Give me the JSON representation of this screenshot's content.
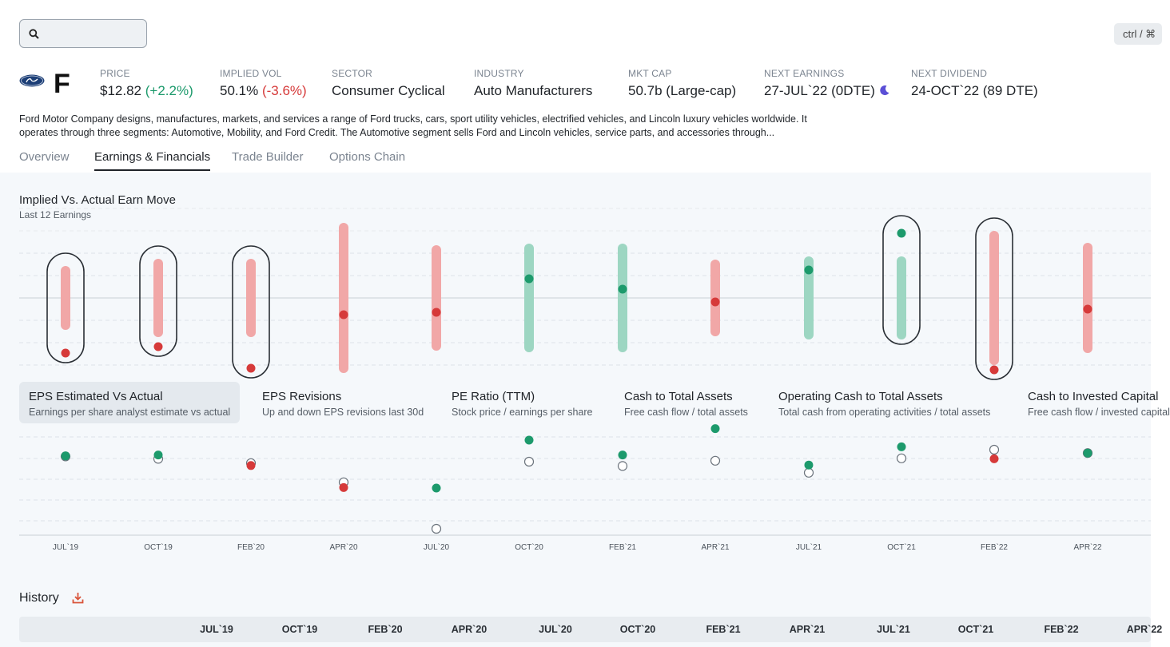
{
  "search": {
    "placeholder": "",
    "shortcut": "ctrl / ⌘"
  },
  "ticker": {
    "symbol": "F",
    "logo": "ford-oval-logo"
  },
  "stats": [
    {
      "label": "PRICE",
      "value": "$12.82",
      "change": "(+2.2%)",
      "change_color": "#1d9a6c"
    },
    {
      "label": "IMPLIED VOL",
      "value": "50.1%",
      "change": "(-3.6%)",
      "change_color": "#d63a3a"
    },
    {
      "label": "SECTOR",
      "value": "Consumer Cyclical"
    },
    {
      "label": "INDUSTRY",
      "value": "Auto Manufacturers"
    },
    {
      "label": "MKT CAP",
      "value": "50.7b (Large-cap)"
    },
    {
      "label": "NEXT EARNINGS",
      "value": "27-JUL`22 (0DTE)",
      "icon": "moon-icon"
    },
    {
      "label": "NEXT DIVIDEND",
      "value": "24-OCT`22 (89 DTE)"
    }
  ],
  "description": "Ford Motor Company designs, manufactures, markets, and services a range of Ford trucks, cars, sport utility vehicles, electrified vehicles, and Lincoln luxury vehicles worldwide. It operates through three segments: Automotive, Mobility, and Ford Credit. The Automotive segment sells Ford and Lincoln vehicles, service parts, and accessories through...",
  "tabs": [
    "Overview",
    "Earnings & Financials",
    "Trade Builder",
    "Options Chain"
  ],
  "active_tab": "Earnings & Financials",
  "earn_move": {
    "title": "Implied Vs. Actual Earn Move",
    "subtitle": "Last 12 Earnings"
  },
  "metrics": [
    {
      "title": "EPS Estimated Vs Actual",
      "subtitle": "Earnings per share analyst estimate vs actual",
      "selected": true
    },
    {
      "title": "EPS Revisions",
      "subtitle": "Up and down EPS revisions last 30d"
    },
    {
      "title": "PE Ratio (TTM)",
      "subtitle": "Stock price / earnings per share"
    },
    {
      "title": "Cash to Total Assets",
      "subtitle": "Free cash flow / total assets"
    },
    {
      "title": "Operating Cash to Total Assets",
      "subtitle": "Total cash from operating activities / total assets"
    },
    {
      "title": "Cash to Invested Capital",
      "subtitle": "Free cash flow / invested capital"
    }
  ],
  "colors": {
    "up": "#1d9a6c",
    "down": "#d63a3a",
    "up_bar": "#9dd6c2",
    "down_bar": "#f1a7a7"
  },
  "chart_data": [
    {
      "type": "scatter",
      "name": "Implied Vs. Actual Earn Move",
      "categories": [
        "JUL`19",
        "OCT`19",
        "FEB`20",
        "APR`20",
        "JUL`20",
        "OCT`20",
        "FEB`21",
        "APR`21",
        "JUL`21",
        "OCT`21",
        "FEB`22",
        "APR`22"
      ],
      "implied_range": [
        [
          -3.4,
          3.4
        ],
        [
          -4.3,
          4.3
        ],
        [
          -4.3,
          4.3
        ],
        [
          -8.8,
          8.8
        ],
        [
          -6.0,
          6.0
        ],
        [
          -6.2,
          6.2
        ],
        [
          -6.2,
          6.2
        ],
        [
          -4.2,
          4.2
        ],
        [
          -4.6,
          4.6
        ],
        [
          -4.6,
          4.6
        ],
        [
          -7.8,
          7.8
        ],
        [
          -6.3,
          6.3
        ]
      ],
      "actual_move": [
        -6.9,
        -6.1,
        -8.8,
        -2.1,
        -1.8,
        2.4,
        1.1,
        -0.5,
        3.5,
        8.1,
        -9.0,
        -1.4
      ],
      "direction": [
        "down",
        "down",
        "down",
        "down",
        "down",
        "up",
        "up",
        "down",
        "up",
        "up",
        "down",
        "down"
      ],
      "outside_implied": [
        true,
        true,
        true,
        false,
        false,
        false,
        false,
        false,
        false,
        true,
        true,
        false
      ]
    },
    {
      "type": "scatter",
      "name": "EPS Estimated Vs Actual",
      "categories": [
        "JUL`19",
        "OCT`19",
        "FEB`20",
        "APR`20",
        "JUL`20",
        "OCT`20",
        "FEB`21",
        "APR`21",
        "JUL`21",
        "OCT`21",
        "FEB`22",
        "APR`22"
      ],
      "estimate": [
        0.31,
        0.26,
        0.17,
        -0.23,
        -1.2,
        0.2,
        0.11,
        0.22,
        -0.03,
        0.27,
        0.45,
        0.38
      ],
      "actual": [
        0.32,
        0.34,
        0.12,
        -0.34,
        -0.35,
        0.65,
        0.34,
        0.89,
        0.13,
        0.51,
        0.26,
        0.38
      ],
      "beat": [
        true,
        true,
        false,
        false,
        true,
        true,
        true,
        true,
        true,
        true,
        false,
        true
      ]
    }
  ],
  "history": {
    "title": "History",
    "icon": "download-icon",
    "columns": [
      "JUL`19",
      "OCT`19",
      "FEB`20",
      "APR`20",
      "JUL`20",
      "OCT`20",
      "FEB`21",
      "APR`21",
      "JUL`21",
      "OCT`21",
      "FEB`22",
      "APR`22"
    ]
  }
}
